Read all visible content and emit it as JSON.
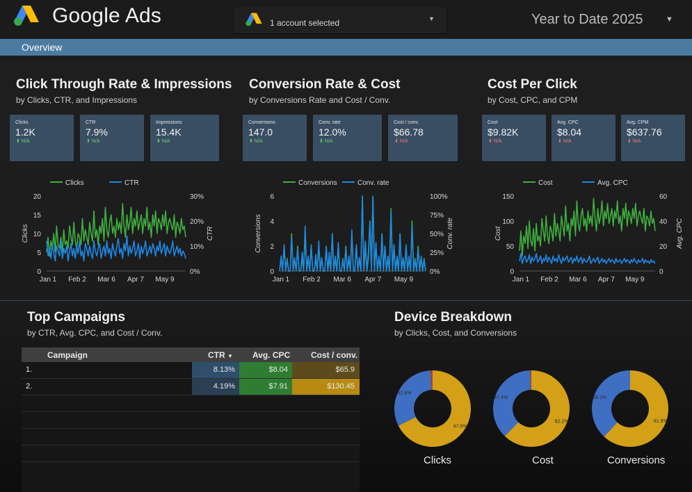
{
  "header": {
    "brand": "Google Ads",
    "account_selector": "1 account selected",
    "date_range": "Year to Date 2025"
  },
  "nav": {
    "tab": "Overview"
  },
  "sections": {
    "ctr": {
      "title": "Click Through Rate & Impressions",
      "subtitle": "by Clicks, CTR, and Impressions",
      "cards": [
        {
          "label": "Clicks",
          "value": "1.2K",
          "delta": "N/A",
          "dir": "up"
        },
        {
          "label": "CTR",
          "value": "7.9%",
          "delta": "N/A",
          "dir": "up"
        },
        {
          "label": "Impressions",
          "value": "15.4K",
          "delta": "N/A",
          "dir": "up"
        }
      ]
    },
    "conv": {
      "title": "Conversion Rate & Cost",
      "subtitle": "by Conversions Rate and Cost / Conv.",
      "cards": [
        {
          "label": "Conversions",
          "value": "147.0",
          "delta": "N/A",
          "dir": "up"
        },
        {
          "label": "Conv. rate",
          "value": "12.0%",
          "delta": "N/A",
          "dir": "up"
        },
        {
          "label": "Cost / conv.",
          "value": "$66.78",
          "delta": "N/A",
          "dir": "down"
        }
      ]
    },
    "cpc": {
      "title": "Cost Per Click",
      "subtitle": "by Cost, CPC, and CPM",
      "cards": [
        {
          "label": "Cost",
          "value": "$9.82K",
          "delta": "N/A",
          "dir": "down"
        },
        {
          "label": "Avg. CPC",
          "value": "$8.04",
          "delta": "N/A",
          "dir": "down"
        },
        {
          "label": "Avg. CPM",
          "value": "$637.76",
          "delta": "N/A",
          "dir": "down"
        }
      ]
    },
    "campaigns": {
      "title": "Top Campaigns",
      "subtitle": "by CTR, Avg. CPC, and Cost / Conv.",
      "columns": [
        "Campaign",
        "CTR",
        "Avg. CPC",
        "Cost / conv."
      ],
      "sort_icon": "caret-down-icon",
      "rows": [
        {
          "rank": "1.",
          "campaign": "",
          "ctr": "8.13%",
          "cpc": "$8.04",
          "cost_conv": "$65.9"
        },
        {
          "rank": "2.",
          "campaign": "",
          "ctr": "4.19%",
          "cpc": "$7.91",
          "cost_conv": "$130.45"
        }
      ]
    },
    "device": {
      "title": "Device Breakdown",
      "subtitle": "by Clicks, Cost, and Conversions"
    }
  },
  "colors": {
    "green": "#3fae3f",
    "blue": "#1e88e5",
    "donut_gold": "#d4a017",
    "donut_blue": "#3f6fc2",
    "donut_red": "#c0392b",
    "nav": "#4c7ba1",
    "card": "#3a4e63",
    "ctr_cell": "#2f4e6b",
    "cpc_cell": "#2e7d32",
    "cost_cell": "#8a6a12"
  },
  "chart_data": [
    {
      "type": "line",
      "x_ticks": [
        "Jan 1",
        "Feb 2",
        "Mar 6",
        "Apr 7",
        "May 9"
      ],
      "xlabel": "",
      "ylabel": "Clicks",
      "y2label": "CTR",
      "ylim": [
        0,
        20
      ],
      "y_ticks": [
        "0",
        "5",
        "10",
        "15",
        "20"
      ],
      "y2lim": [
        0,
        30
      ],
      "y2_ticks": [
        "0%",
        "10%",
        "20%",
        "30%"
      ],
      "series": [
        {
          "name": "Clicks",
          "axis": "left",
          "color": "#3fae3f",
          "values": [
            5,
            9,
            4,
            8,
            6,
            10,
            5,
            12,
            7,
            6,
            9,
            5,
            11,
            7,
            8,
            6,
            12,
            9,
            7,
            13,
            8,
            6,
            10,
            9,
            7,
            14,
            8,
            11,
            9,
            7,
            13,
            10,
            8,
            16,
            9,
            11,
            7,
            12,
            10,
            14,
            8,
            17,
            11,
            9,
            13,
            15,
            10,
            12,
            9,
            14,
            11,
            13,
            10,
            18,
            12,
            9,
            15,
            11,
            13,
            17,
            10,
            14,
            12,
            16,
            11,
            13,
            15,
            10,
            14,
            12,
            17,
            11,
            13,
            9,
            15,
            12,
            16,
            10,
            14,
            13,
            11,
            15,
            12,
            16,
            10,
            13,
            14,
            12,
            11,
            15,
            9,
            13,
            12,
            10,
            14,
            11,
            12,
            9
          ]
        },
        {
          "name": "CTR",
          "axis": "right",
          "color": "#1e88e5",
          "values": [
            12,
            6,
            9,
            5,
            11,
            7,
            4,
            10,
            8,
            6,
            12,
            5,
            9,
            7,
            10,
            4,
            8,
            11,
            6,
            9,
            5,
            10,
            7,
            12,
            6,
            8,
            4,
            11,
            9,
            6,
            10,
            7,
            5,
            12,
            8,
            6,
            9,
            11,
            5,
            8,
            10,
            6,
            12,
            7,
            9,
            5,
            11,
            8,
            6,
            10,
            13,
            7,
            9,
            5,
            11,
            8,
            14,
            6,
            10,
            7,
            9,
            12,
            6,
            8,
            11,
            5,
            10,
            7,
            9,
            12,
            6,
            8,
            10,
            7,
            11,
            9,
            6,
            10,
            8,
            12,
            7,
            9,
            11,
            6,
            10,
            8,
            7,
            9,
            12,
            6,
            8,
            10,
            7,
            9,
            6,
            8,
            7,
            5
          ]
        }
      ]
    },
    {
      "type": "line",
      "x_ticks": [
        "Jan 1",
        "Feb 2",
        "Mar 6",
        "Apr 7",
        "May 9"
      ],
      "xlabel": "",
      "ylabel": "Conversions",
      "y2label": "Conv. rate",
      "ylim": [
        0,
        6
      ],
      "y_ticks": [
        "0",
        "2",
        "4",
        "6"
      ],
      "y2lim": [
        0,
        100
      ],
      "y2_ticks": [
        "0%",
        "25%",
        "50%",
        "75%",
        "100%"
      ],
      "series": [
        {
          "name": "Conversions",
          "axis": "left",
          "color": "#3fae3f",
          "values": [
            0,
            1,
            0,
            2,
            0,
            1,
            0,
            0,
            3,
            0,
            1,
            0,
            2,
            0,
            0,
            1,
            0,
            3,
            0,
            1,
            0,
            2,
            0,
            0,
            1,
            0,
            2,
            0,
            1,
            0,
            0,
            2,
            0,
            1,
            0,
            3,
            0,
            1,
            0,
            2,
            0,
            0,
            1,
            0,
            2,
            0,
            1,
            0,
            3,
            0,
            0,
            2,
            0,
            1,
            0,
            6,
            0,
            2,
            0,
            1,
            4,
            0,
            6,
            0,
            2,
            0,
            1,
            0,
            3,
            0,
            2,
            0,
            1,
            0,
            5,
            0,
            2,
            0,
            1,
            0,
            3,
            0,
            1,
            0,
            2,
            0,
            1,
            0,
            4,
            0,
            1,
            0,
            2,
            0,
            1,
            0,
            1,
            0
          ]
        },
        {
          "name": "Conv. rate",
          "axis": "right",
          "color": "#1e88e5",
          "values": [
            0,
            20,
            0,
            35,
            0,
            15,
            0,
            0,
            45,
            0,
            18,
            0,
            30,
            0,
            0,
            25,
            0,
            60,
            0,
            20,
            0,
            35,
            0,
            0,
            22,
            0,
            40,
            0,
            18,
            0,
            0,
            33,
            0,
            25,
            0,
            50,
            0,
            20,
            0,
            38,
            0,
            0,
            15,
            0,
            30,
            0,
            20,
            0,
            55,
            0,
            0,
            35,
            0,
            18,
            0,
            100,
            0,
            40,
            0,
            25,
            65,
            0,
            100,
            0,
            38,
            0,
            20,
            0,
            50,
            0,
            33,
            0,
            20,
            0,
            80,
            0,
            35,
            0,
            20,
            0,
            50,
            0,
            18,
            0,
            35,
            0,
            20,
            0,
            60,
            0,
            15,
            0,
            30,
            0,
            20,
            0,
            15,
            0
          ]
        }
      ]
    },
    {
      "type": "line",
      "x_ticks": [
        "Jan 1",
        "Feb 2",
        "Mar 6",
        "Apr 7",
        "May 9"
      ],
      "xlabel": "",
      "ylabel": "Cost",
      "y2label": "Avg. CPC",
      "ylim": [
        0,
        150
      ],
      "y_ticks": [
        "0",
        "50",
        "100",
        "150"
      ],
      "y2lim": [
        0,
        60
      ],
      "y2_ticks": [
        "0",
        "20",
        "40",
        "60"
      ],
      "series": [
        {
          "name": "Cost",
          "axis": "left",
          "color": "#3fae3f",
          "values": [
            40,
            80,
            30,
            70,
            55,
            90,
            45,
            100,
            60,
            50,
            85,
            40,
            95,
            60,
            70,
            50,
            105,
            80,
            60,
            110,
            70,
            55,
            90,
            80,
            60,
            115,
            70,
            95,
            80,
            60,
            110,
            90,
            70,
            130,
            80,
            95,
            60,
            105,
            90,
            120,
            70,
            140,
            95,
            80,
            110,
            125,
            90,
            105,
            80,
            120,
            95,
            110,
            90,
            145,
            105,
            80,
            125,
            95,
            110,
            140,
            90,
            120,
            105,
            135,
            95,
            110,
            125,
            90,
            120,
            105,
            140,
            95,
            110,
            80,
            125,
            105,
            135,
            90,
            120,
            110,
            95,
            125,
            105,
            135,
            90,
            110,
            120,
            105,
            95,
            125,
            80,
            110,
            105,
            90,
            120,
            95,
            105,
            80
          ]
        },
        {
          "name": "Avg. CPC",
          "axis": "right",
          "color": "#1e88e5",
          "values": [
            8,
            14,
            6,
            10,
            12,
            7,
            9,
            13,
            6,
            11,
            8,
            10,
            14,
            7,
            9,
            12,
            6,
            10,
            8,
            13,
            7,
            11,
            9,
            6,
            12,
            8,
            10,
            7,
            13,
            9,
            6,
            11,
            8,
            10,
            12,
            7,
            9,
            11,
            6,
            10,
            8,
            12,
            7,
            9,
            11,
            6,
            10,
            8,
            7,
            9,
            12,
            6,
            8,
            10,
            7,
            9,
            11,
            6,
            8,
            10,
            7,
            9,
            6,
            8,
            10,
            7,
            9,
            8,
            6,
            10,
            7,
            8,
            9,
            6,
            8,
            10,
            7,
            9,
            8,
            6,
            9,
            7,
            10,
            8,
            6,
            9,
            7,
            8,
            10,
            6,
            9,
            7,
            8,
            6,
            9,
            7,
            8,
            6
          ]
        }
      ]
    },
    {
      "type": "pie",
      "title": "Clicks",
      "slices": [
        {
          "label": "",
          "value": 67.6,
          "text": "67.6%",
          "color": "#d4a017"
        },
        {
          "label": "",
          "value": 31.6,
          "text": "31.6%",
          "color": "#3f6fc2"
        },
        {
          "label": "",
          "value": 0.8,
          "text": "",
          "color": "#c0392b"
        }
      ]
    },
    {
      "type": "pie",
      "title": "Cost",
      "slices": [
        {
          "label": "",
          "value": 62.2,
          "text": "62.2%",
          "color": "#d4a017"
        },
        {
          "label": "",
          "value": 37.4,
          "text": "37.4%",
          "color": "#3f6fc2"
        },
        {
          "label": "",
          "value": 0.4,
          "text": "",
          "color": "#c0392b"
        }
      ]
    },
    {
      "type": "pie",
      "title": "Conversions",
      "slices": [
        {
          "label": "",
          "value": 61.9,
          "text": "61.9%",
          "color": "#d4a017"
        },
        {
          "label": "",
          "value": 38.1,
          "text": "38.1%",
          "color": "#3f6fc2"
        }
      ]
    }
  ]
}
